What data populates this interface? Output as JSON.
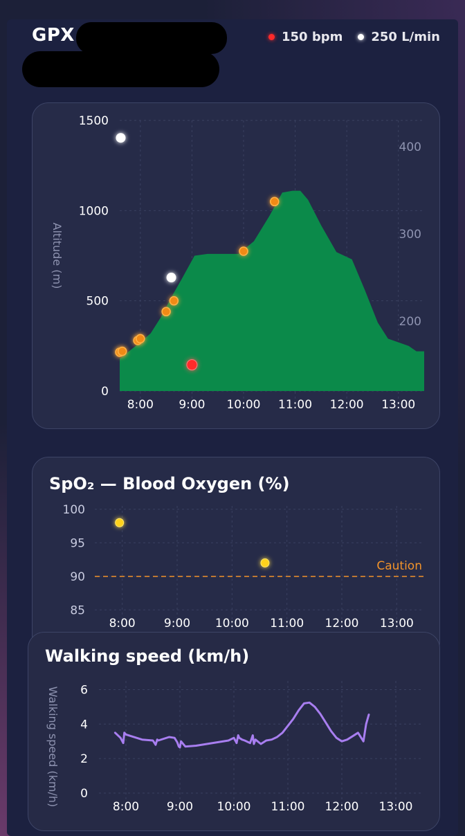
{
  "header": {
    "title": "GPX",
    "legend": [
      {
        "label": "150 bpm",
        "color": "#ff2a2a"
      },
      {
        "label": "250 L/min",
        "color": "#ffffff"
      }
    ]
  },
  "chart_data": [
    {
      "type": "area",
      "ylabel": "Altitude (m)",
      "ylim": [
        0,
        1500
      ],
      "y_ticks": [
        0,
        500,
        1000,
        1500
      ],
      "y2_ticks": [
        200,
        300,
        400
      ],
      "y2lim": [
        120,
        430
      ],
      "xlim": [
        7.6,
        13.5
      ],
      "x_ticks": [
        "8:00",
        "9:00",
        "10:00",
        "11:00",
        "12:00",
        "13:00"
      ],
      "grid": true,
      "fill_color": "#0b8a4a",
      "altitude": [
        [
          7.6,
          0
        ],
        [
          7.6,
          180
        ],
        [
          8.0,
          270
        ],
        [
          8.2,
          320
        ],
        [
          8.4,
          410
        ],
        [
          8.6,
          520
        ],
        [
          8.8,
          620
        ],
        [
          9.05,
          750
        ],
        [
          9.3,
          760
        ],
        [
          9.6,
          760
        ],
        [
          9.9,
          760
        ],
        [
          10.2,
          830
        ],
        [
          10.5,
          970
        ],
        [
          10.75,
          1100
        ],
        [
          10.95,
          1110
        ],
        [
          11.1,
          1110
        ],
        [
          11.25,
          1060
        ],
        [
          11.5,
          920
        ],
        [
          11.8,
          770
        ],
        [
          12.1,
          730
        ],
        [
          12.35,
          560
        ],
        [
          12.6,
          380
        ],
        [
          12.8,
          290
        ],
        [
          13.0,
          270
        ],
        [
          13.2,
          250
        ],
        [
          13.35,
          220
        ],
        [
          13.5,
          220
        ],
        [
          13.5,
          0
        ]
      ],
      "orange_points": [
        [
          7.6,
          215
        ],
        [
          7.65,
          220
        ],
        [
          7.95,
          280
        ],
        [
          8.0,
          290
        ],
        [
          8.5,
          440
        ],
        [
          8.65,
          500
        ],
        [
          10.0,
          775
        ],
        [
          10.6,
          1050
        ]
      ],
      "heart_rate_points": [
        {
          "x": 9.0,
          "y": 150,
          "color": "#ff2a2a"
        }
      ],
      "flow_points": [
        {
          "x": 7.62,
          "y": 410,
          "color": "#ffffff"
        },
        {
          "x": 8.6,
          "y": 250,
          "color": "#ffffff"
        }
      ]
    },
    {
      "type": "scatter",
      "title": "SpO₂ — Blood Oxygen (%)",
      "ylim": [
        84,
        100.5
      ],
      "y_ticks": [
        85,
        90,
        95,
        100
      ],
      "xlim": [
        7.5,
        13.5
      ],
      "x_ticks": [
        "8:00",
        "9:00",
        "10:00",
        "11:00",
        "12:00",
        "13:00"
      ],
      "grid": true,
      "points": [
        [
          7.95,
          98
        ],
        [
          10.6,
          92
        ]
      ],
      "caution_level": 90,
      "caution_label": "Caution",
      "point_color": "#ffd21a",
      "caution_color": "#f2932a"
    },
    {
      "type": "line",
      "title": "Walking speed (km/h)",
      "ylabel": "Walking speed (km/h)",
      "ylim": [
        0,
        6.5
      ],
      "y_ticks": [
        0,
        2,
        4,
        6
      ],
      "xlim": [
        7.5,
        13.5
      ],
      "x_ticks": [
        "8:00",
        "9:00",
        "10:00",
        "11:00",
        "12:00",
        "13:00"
      ],
      "grid": true,
      "line_color": "#a87ef0",
      "x": [
        7.8,
        7.9,
        7.95,
        7.97,
        8.0,
        8.1,
        8.3,
        8.5,
        8.55,
        8.58,
        8.6,
        8.7,
        8.8,
        8.9,
        8.95,
        8.98,
        9.0,
        9.02,
        9.1,
        9.3,
        9.5,
        9.7,
        9.9,
        10.0,
        10.05,
        10.08,
        10.1,
        10.15,
        10.2,
        10.3,
        10.35,
        10.37,
        10.4,
        10.5,
        10.6,
        10.7,
        10.8,
        10.9,
        11.0,
        11.1,
        11.2,
        11.3,
        11.4,
        11.5,
        11.6,
        11.7,
        11.8,
        11.9,
        12.0,
        12.1,
        12.2,
        12.3,
        12.4,
        12.45,
        12.5
      ],
      "y": [
        3.5,
        3.2,
        2.9,
        3.5,
        3.4,
        3.3,
        3.1,
        3.05,
        2.8,
        3.1,
        3.05,
        3.15,
        3.25,
        3.2,
        2.95,
        2.7,
        2.65,
        3.0,
        2.7,
        2.75,
        2.85,
        2.95,
        3.05,
        3.2,
        2.9,
        3.35,
        3.2,
        3.1,
        3.05,
        2.9,
        3.35,
        2.85,
        3.1,
        2.85,
        3.05,
        3.1,
        3.25,
        3.5,
        3.9,
        4.3,
        4.8,
        5.2,
        5.25,
        5.0,
        4.6,
        4.1,
        3.6,
        3.2,
        3.0,
        3.1,
        3.3,
        3.5,
        3.0,
        4.0,
        4.55
      ]
    }
  ]
}
